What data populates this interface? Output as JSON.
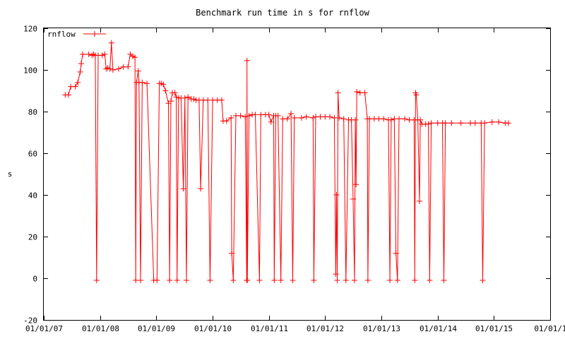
{
  "chart_data": {
    "type": "line",
    "title": "Benchmark run time in s for rnflow",
    "xlabel": "",
    "ylabel": "s",
    "xlim": [
      "2007-01-01",
      "2016-01-01"
    ],
    "ylim": [
      -20,
      120
    ],
    "x_ticks": [
      "01/01/07",
      "01/01/08",
      "01/01/09",
      "01/01/10",
      "01/01/11",
      "01/01/12",
      "01/01/13",
      "01/01/14",
      "01/01/15",
      "01/01/1"
    ],
    "y_ticks": [
      -20,
      0,
      20,
      40,
      60,
      80,
      100,
      120
    ],
    "grid": false,
    "legend_position": "top-left",
    "series": [
      {
        "name": "rnflow",
        "color": "#ff0000",
        "marker": "plus",
        "points": [
          [
            "2007-05-20",
            88
          ],
          [
            "2007-06-10",
            88
          ],
          [
            "2007-06-25",
            92
          ],
          [
            "2007-07-25",
            92
          ],
          [
            "2007-08-10",
            94
          ],
          [
            "2007-08-25",
            99
          ],
          [
            "2007-09-01",
            103
          ],
          [
            "2007-09-10",
            107.5
          ],
          [
            "2007-10-20",
            107.5
          ],
          [
            "2007-11-10",
            107
          ],
          [
            "2007-11-20",
            107.5
          ],
          [
            "2007-12-01",
            107
          ],
          [
            "2007-12-10",
            -1
          ],
          [
            "2007-12-20",
            107
          ],
          [
            "2008-01-15",
            107
          ],
          [
            "2008-02-01",
            107.5
          ],
          [
            "2008-02-10",
            100.5
          ],
          [
            "2008-02-20",
            101
          ],
          [
            "2008-03-05",
            100.5
          ],
          [
            "2008-03-15",
            113
          ],
          [
            "2008-03-25",
            100
          ],
          [
            "2008-05-01",
            100.5
          ],
          [
            "2008-06-01",
            101.5
          ],
          [
            "2008-07-01",
            101.5
          ],
          [
            "2008-07-15",
            107.5
          ],
          [
            "2008-08-01",
            106.5
          ],
          [
            "2008-08-15",
            106
          ],
          [
            "2008-08-20",
            -1
          ],
          [
            "2008-08-25",
            94
          ],
          [
            "2008-09-05",
            99.5
          ],
          [
            "2008-09-10",
            94
          ],
          [
            "2008-09-20",
            -1
          ],
          [
            "2008-10-01",
            94
          ],
          [
            "2008-11-01",
            93.5
          ],
          [
            "2008-12-15",
            -1
          ],
          [
            "2009-01-05",
            -1
          ],
          [
            "2009-01-20",
            93.5
          ],
          [
            "2009-02-01",
            93.5
          ],
          [
            "2009-02-15",
            93
          ],
          [
            "2009-03-01",
            90
          ],
          [
            "2009-03-20",
            84
          ],
          [
            "2009-03-28",
            -1
          ],
          [
            "2009-04-05",
            85
          ],
          [
            "2009-04-15",
            89
          ],
          [
            "2009-05-01",
            89
          ],
          [
            "2009-05-10",
            87
          ],
          [
            "2009-05-15",
            -1
          ],
          [
            "2009-05-25",
            86.5
          ],
          [
            "2009-06-10",
            86.5
          ],
          [
            "2009-06-25",
            43
          ],
          [
            "2009-07-05",
            86.5
          ],
          [
            "2009-07-15",
            -1
          ],
          [
            "2009-07-25",
            87
          ],
          [
            "2009-08-15",
            86
          ],
          [
            "2009-09-01",
            86
          ],
          [
            "2009-09-15",
            85.5
          ],
          [
            "2009-10-05",
            85.5
          ],
          [
            "2009-10-15",
            43
          ],
          [
            "2009-11-01",
            85.5
          ],
          [
            "2009-12-01",
            85.5
          ],
          [
            "2009-12-15",
            -1
          ],
          [
            "2010-01-01",
            85.5
          ],
          [
            "2010-02-01",
            85.5
          ],
          [
            "2010-03-01",
            85.5
          ],
          [
            "2010-03-10",
            75.5
          ],
          [
            "2010-04-01",
            75.5
          ],
          [
            "2010-05-01",
            77
          ],
          [
            "2010-05-05",
            12
          ],
          [
            "2010-05-15",
            -1
          ],
          [
            "2010-06-01",
            78
          ],
          [
            "2010-07-01",
            78
          ],
          [
            "2010-08-01",
            77.5
          ],
          [
            "2010-08-10",
            -1
          ],
          [
            "2010-08-12",
            104.5
          ],
          [
            "2010-08-14",
            -1
          ],
          [
            "2010-08-25",
            78
          ],
          [
            "2010-09-15",
            78.5
          ],
          [
            "2010-10-05",
            78.5
          ],
          [
            "2010-11-01",
            -1
          ],
          [
            "2010-11-10",
            78.5
          ],
          [
            "2010-12-10",
            78.5
          ],
          [
            "2011-01-01",
            78.5
          ],
          [
            "2011-01-15",
            75
          ],
          [
            "2011-02-01",
            78
          ],
          [
            "2011-02-05",
            -1
          ],
          [
            "2011-02-15",
            78
          ],
          [
            "2011-03-01",
            78
          ],
          [
            "2011-03-20",
            -1
          ],
          [
            "2011-04-01",
            76.5
          ],
          [
            "2011-05-01",
            76.5
          ],
          [
            "2011-05-25",
            79
          ],
          [
            "2011-06-05",
            -1
          ],
          [
            "2011-06-15",
            77
          ],
          [
            "2011-08-01",
            77
          ],
          [
            "2011-09-01",
            77.5
          ],
          [
            "2011-10-15",
            77
          ],
          [
            "2011-10-20",
            -1
          ],
          [
            "2011-11-01",
            77.5
          ],
          [
            "2011-12-01",
            77.5
          ],
          [
            "2012-01-01",
            77.5
          ],
          [
            "2012-02-01",
            77.5
          ],
          [
            "2012-03-01",
            77
          ],
          [
            "2012-03-10",
            2
          ],
          [
            "2012-03-15",
            40
          ],
          [
            "2012-03-20",
            -1
          ],
          [
            "2012-03-25",
            89
          ],
          [
            "2012-04-01",
            77
          ],
          [
            "2012-05-01",
            76.5
          ],
          [
            "2012-05-15",
            -1
          ],
          [
            "2012-06-01",
            76
          ],
          [
            "2012-06-20",
            76
          ],
          [
            "2012-07-01",
            38
          ],
          [
            "2012-07-10",
            -1
          ],
          [
            "2012-07-15",
            76
          ],
          [
            "2012-07-20",
            45
          ],
          [
            "2012-07-25",
            89.5
          ],
          [
            "2012-08-15",
            89
          ],
          [
            "2012-09-15",
            89
          ],
          [
            "2012-10-01",
            76.5
          ],
          [
            "2012-10-05",
            -1
          ],
          [
            "2012-10-15",
            76.5
          ],
          [
            "2012-11-15",
            76.5
          ],
          [
            "2012-12-15",
            76.5
          ],
          [
            "2013-01-15",
            76.5
          ],
          [
            "2013-02-15",
            76
          ],
          [
            "2013-02-25",
            -1
          ],
          [
            "2013-03-05",
            76
          ],
          [
            "2013-03-25",
            76.5
          ],
          [
            "2013-04-05",
            12
          ],
          [
            "2013-04-15",
            -1
          ],
          [
            "2013-04-25",
            76.5
          ],
          [
            "2013-06-01",
            76.5
          ],
          [
            "2013-07-01",
            76
          ],
          [
            "2013-08-01",
            76
          ],
          [
            "2013-08-05",
            -1
          ],
          [
            "2013-08-10",
            89
          ],
          [
            "2013-08-15",
            88
          ],
          [
            "2013-08-25",
            76
          ],
          [
            "2013-09-05",
            37
          ],
          [
            "2013-09-10",
            76
          ],
          [
            "2013-09-20",
            74
          ],
          [
            "2013-10-15",
            74
          ],
          [
            "2013-11-01",
            74
          ],
          [
            "2013-11-10",
            -1
          ],
          [
            "2013-11-20",
            74.5
          ],
          [
            "2014-01-01",
            74.5
          ],
          [
            "2014-02-01",
            74.5
          ],
          [
            "2014-02-10",
            -1
          ],
          [
            "2014-02-20",
            74.5
          ],
          [
            "2014-04-01",
            74.5
          ],
          [
            "2014-06-01",
            74.5
          ],
          [
            "2014-08-01",
            74.5
          ],
          [
            "2014-09-01",
            74.5
          ],
          [
            "2014-10-10",
            74.5
          ],
          [
            "2014-10-20",
            -1
          ],
          [
            "2014-11-01",
            74.5
          ],
          [
            "2014-12-20",
            75
          ],
          [
            "2015-02-01",
            75
          ],
          [
            "2015-03-15",
            74.5
          ],
          [
            "2015-04-05",
            74.5
          ]
        ]
      }
    ]
  }
}
